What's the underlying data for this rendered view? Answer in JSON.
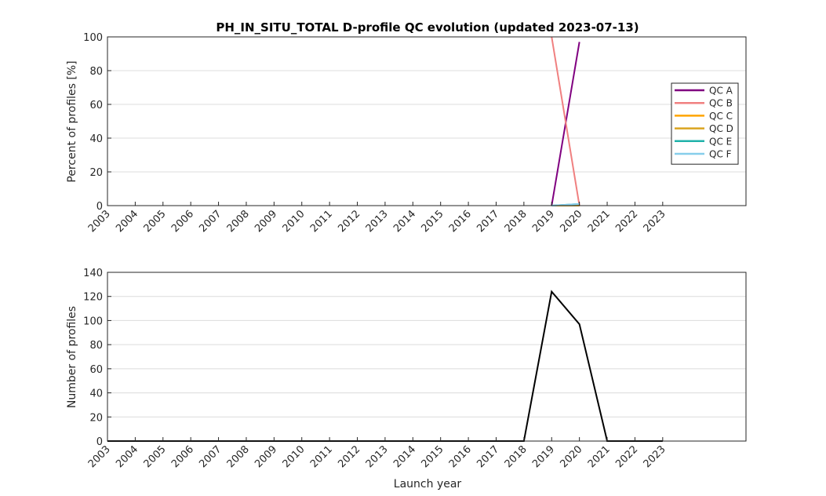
{
  "chart_data": [
    {
      "type": "line",
      "title": "PH_IN_SITU_TOTAL D-profile QC evolution (updated 2023-07-13)",
      "xlabel": "",
      "ylabel": "Percent of profiles [%]",
      "categories": [
        "2003",
        "2004",
        "2005",
        "2006",
        "2007",
        "2008",
        "2009",
        "2010",
        "2011",
        "2012",
        "2013",
        "2014",
        "2015",
        "2016",
        "2017",
        "2018",
        "2019",
        "2020",
        "2021",
        "2022",
        "2023"
      ],
      "x": [
        2019,
        2020
      ],
      "xlim": [
        2003,
        2026
      ],
      "ylim": [
        0,
        100
      ],
      "yticks": [
        0,
        20,
        40,
        60,
        80,
        100
      ],
      "grid": true,
      "legend_position": "right",
      "series": [
        {
          "name": "QC A",
          "color": "#800080",
          "values": [
            0,
            97
          ]
        },
        {
          "name": "QC B",
          "color": "#f08080",
          "values": [
            100,
            0
          ]
        },
        {
          "name": "QC C",
          "color": "#ffa500",
          "values": [
            0,
            0
          ]
        },
        {
          "name": "QC D",
          "color": "#daa520",
          "values": [
            0,
            0
          ]
        },
        {
          "name": "QC E",
          "color": "#20b2aa",
          "values": [
            0,
            1
          ]
        },
        {
          "name": "QC F",
          "color": "#87ceeb",
          "values": [
            0,
            1
          ]
        }
      ]
    },
    {
      "type": "line",
      "title": "",
      "xlabel": "Launch year",
      "ylabel": "Number of profiles",
      "categories": [
        "2003",
        "2004",
        "2005",
        "2006",
        "2007",
        "2008",
        "2009",
        "2010",
        "2011",
        "2012",
        "2013",
        "2014",
        "2015",
        "2016",
        "2017",
        "2018",
        "2019",
        "2020",
        "2021",
        "2022",
        "2023"
      ],
      "x": [
        2003,
        2004,
        2005,
        2006,
        2007,
        2008,
        2009,
        2010,
        2011,
        2012,
        2013,
        2014,
        2015,
        2016,
        2017,
        2018,
        2019,
        2020,
        2021,
        2022,
        2023
      ],
      "xlim": [
        2003,
        2026
      ],
      "ylim": [
        0,
        140
      ],
      "yticks": [
        0,
        20,
        40,
        60,
        80,
        100,
        120,
        140
      ],
      "grid": true,
      "series": [
        {
          "name": "",
          "color": "#000000",
          "values": [
            0,
            0,
            0,
            0,
            0,
            0,
            0,
            0,
            0,
            0,
            0,
            0,
            0,
            0,
            0,
            0,
            124,
            97,
            0,
            0,
            0
          ]
        }
      ]
    }
  ]
}
